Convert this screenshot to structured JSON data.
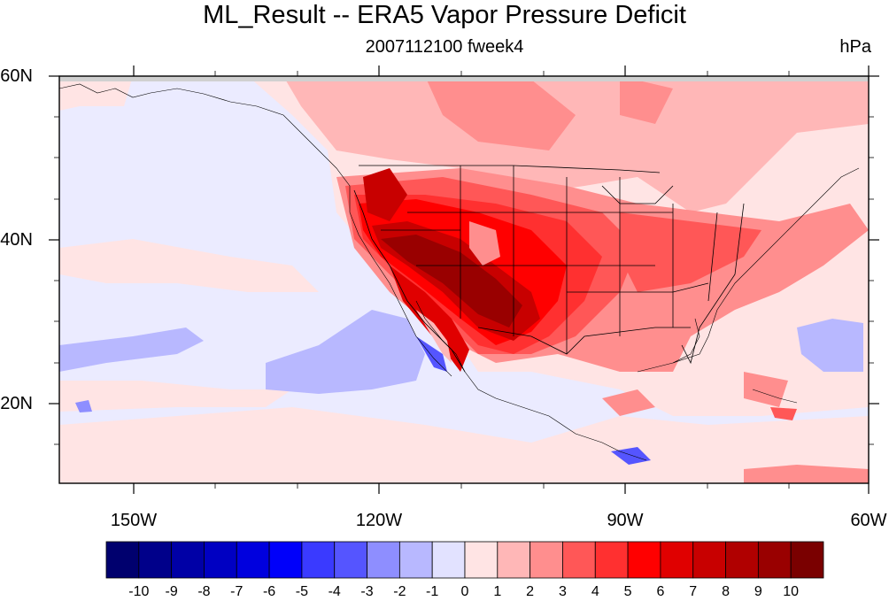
{
  "title": "ML_Result -- ERA5 Vapor Pressure Deficit",
  "subtitle_center": "2007112100 fweek4",
  "units": "hPa",
  "lat_labels": [
    "60N",
    "40N",
    "20N"
  ],
  "lon_labels": [
    "150W",
    "120W",
    "90W",
    "60W"
  ],
  "colorbar": {
    "labels": [
      "-10",
      "-9",
      "-8",
      "-7",
      "-6",
      "-5",
      "-4",
      "-3",
      "-2",
      "-1",
      "0",
      "1",
      "2",
      "3",
      "4",
      "5",
      "6",
      "7",
      "8",
      "9",
      "10"
    ],
    "colors": [
      "#00006e",
      "#00008a",
      "#0000a6",
      "#0000c2",
      "#0000de",
      "#0000fa",
      "#3a3aff",
      "#5555ff",
      "#8e8eff",
      "#b8b8ff",
      "#e2e2ff",
      "#ffe4e4",
      "#ffb7b7",
      "#ff8e8e",
      "#ff5757",
      "#ff3030",
      "#ff0000",
      "#e00000",
      "#c80000",
      "#b00000",
      "#990000",
      "#7a0000"
    ]
  },
  "map_extent": {
    "lon_min": -160,
    "lon_max": -60,
    "lat_min": 10,
    "lat_max": 60
  },
  "colors": {
    "ocean_background": "#ebebff",
    "land_background": "#ffe4e4"
  }
}
